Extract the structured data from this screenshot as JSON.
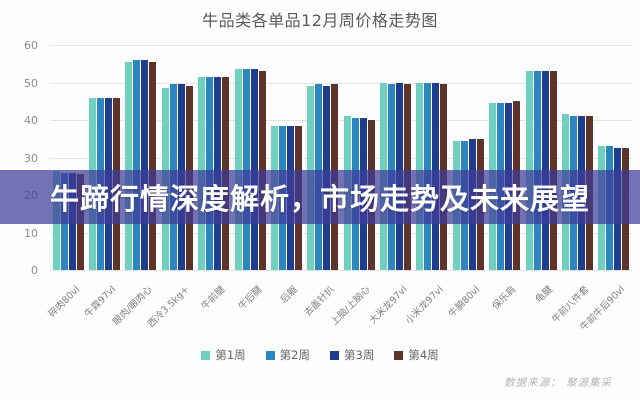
{
  "page": {
    "overlay_headline": "牛蹄行情深度解析，市场走势及未来展望",
    "overlay_color": "rgba(61,59,152,0.72)",
    "footer_source": "数据来源： 聚源集采"
  },
  "chart_data": {
    "type": "bar",
    "title": "牛品类各单品12月周价格走势图",
    "categories": [
      "碎肉80vl",
      "牛霖97vl",
      "眼肉/眼肉心",
      "西冷3.5kg+",
      "牛前腱",
      "牛后腱",
      "后躯",
      "去盖针扒",
      "上脑/上脑心",
      "大米龙97vl",
      "小米龙97vl",
      "牛腩80vl",
      "保乐肩",
      "龟腱",
      "牛前八件套",
      "牛前牛后90vl"
    ],
    "series": [
      {
        "name": "第1周",
        "color": "#6fd0c0",
        "values": [
          26.5,
          46,
          55.5,
          48.5,
          51.5,
          53.5,
          38.5,
          49,
          41,
          50,
          50,
          34.5,
          44.5,
          53,
          41.5,
          33
        ]
      },
      {
        "name": "第2周",
        "color": "#2e86c1",
        "values": [
          26,
          46,
          56,
          49.5,
          51.5,
          53.5,
          38.5,
          49.5,
          40.5,
          49.5,
          50,
          34.5,
          44.5,
          53,
          41,
          33
        ]
      },
      {
        "name": "第3周",
        "color": "#1f3d8e",
        "values": [
          26,
          46,
          56,
          49.5,
          51.5,
          53.5,
          38.5,
          49,
          40.5,
          50,
          50,
          35,
          44.5,
          53,
          41,
          32.5
        ]
      },
      {
        "name": "第4周",
        "color": "#5d332a",
        "values": [
          25.5,
          46,
          55.5,
          49,
          51.5,
          53,
          38.5,
          49.5,
          40,
          49.5,
          49.5,
          35,
          45,
          53,
          41,
          32.5
        ]
      }
    ],
    "ylabel": "",
    "xlabel": "",
    "ylim": [
      0,
      60
    ],
    "yticks": [
      0,
      10,
      20,
      30,
      40,
      50,
      60
    ],
    "grid": true,
    "legend_position": "bottom"
  }
}
